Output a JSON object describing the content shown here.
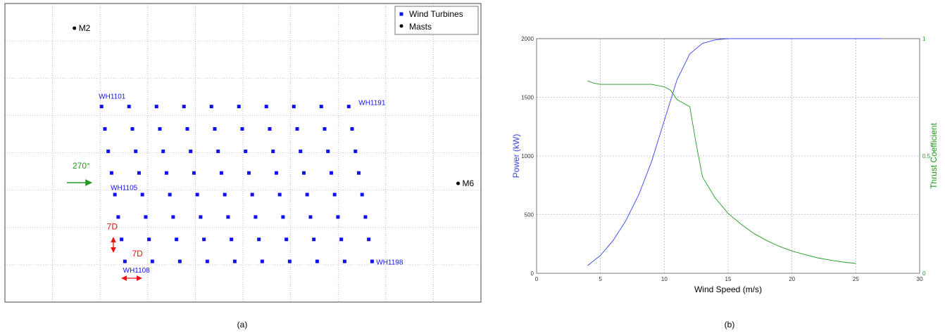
{
  "chart_data": [
    {
      "type": "scatter",
      "panel_label": "(a)",
      "xlim": [
        0,
        10
      ],
      "ylim": [
        0,
        8
      ],
      "grid": true,
      "legend_position": "top-right",
      "legend": [
        {
          "label": "Wind Turbines",
          "color": "#1010ee"
        },
        {
          "label": "Masts",
          "color": "#000000"
        }
      ],
      "series": [
        {
          "name": "Wind Turbines",
          "color": "#1010ee",
          "rows": [
            {
              "x_start": 2.03,
              "x_step": 0.577,
              "y": 5.24,
              "count": 10
            },
            {
              "x_start": 2.1,
              "x_step": 0.577,
              "y": 4.64,
              "count": 10
            },
            {
              "x_start": 2.17,
              "x_step": 0.577,
              "y": 4.04,
              "count": 10
            },
            {
              "x_start": 2.24,
              "x_step": 0.577,
              "y": 3.46,
              "count": 10
            },
            {
              "x_start": 2.31,
              "x_step": 0.577,
              "y": 2.88,
              "count": 10
            },
            {
              "x_start": 2.38,
              "x_step": 0.577,
              "y": 2.28,
              "count": 10
            },
            {
              "x_start": 2.45,
              "x_step": 0.577,
              "y": 1.68,
              "count": 10
            },
            {
              "x_start": 2.52,
              "x_step": 0.577,
              "y": 1.09,
              "count": 10
            }
          ]
        },
        {
          "name": "Masts",
          "color": "#000000",
          "points": [
            {
              "label": "M2",
              "x": 1.46,
              "y": 7.34
            },
            {
              "label": "M6",
              "x": 9.52,
              "y": 3.18
            }
          ]
        }
      ],
      "annotations": [
        {
          "text": "WH1101",
          "x": 1.97,
          "y": 5.45,
          "color": "#1010ee"
        },
        {
          "text": "WH1191",
          "x": 7.43,
          "y": 5.28,
          "color": "#1010ee"
        },
        {
          "text": "WH1105",
          "x": 2.22,
          "y": 3.0,
          "color": "#1010ee"
        },
        {
          "text": "WH1108",
          "x": 2.48,
          "y": 0.79,
          "color": "#1010ee"
        },
        {
          "text": "WH1198",
          "x": 7.8,
          "y": 1.01,
          "color": "#1010ee"
        },
        {
          "text": "270°",
          "x": 1.42,
          "y": 3.58,
          "color": "#229922"
        },
        {
          "text": "7D",
          "x": 2.14,
          "y": 1.95,
          "color": "#ee1111"
        },
        {
          "text": "7D",
          "x": 2.67,
          "y": 1.22,
          "color": "#ee1111"
        }
      ]
    },
    {
      "type": "line",
      "panel_label": "(b)",
      "xlabel": "Wind Speed (m/s)",
      "ylabel": "Power (kW)",
      "ylabel_right": "Thrust Coefficient",
      "xlim": [
        0,
        30
      ],
      "ylim": [
        0,
        2000
      ],
      "ylim_right": [
        0,
        1
      ],
      "x_ticks": [
        0,
        5,
        10,
        15,
        20,
        25,
        30
      ],
      "y_ticks": [
        0,
        500,
        1000,
        1500,
        2000
      ],
      "y_ticks_right": [
        0,
        0.5,
        1
      ],
      "grid": true,
      "series": [
        {
          "name": "Power",
          "axis": "left",
          "color": "#3344ee",
          "x": [
            4,
            5,
            6,
            7,
            8,
            9,
            10,
            11,
            12,
            13,
            14,
            15,
            16,
            17,
            18,
            19,
            20,
            21,
            22,
            23,
            24,
            25,
            26,
            27
          ],
          "values": [
            66,
            152,
            280,
            450,
            670,
            950,
            1300,
            1650,
            1870,
            1960,
            1990,
            2000,
            2000,
            2000,
            2000,
            2000,
            2000,
            2000,
            2000,
            2000,
            2000,
            2000,
            2000,
            2000
          ]
        },
        {
          "name": "Thrust Coefficient",
          "axis": "right",
          "color": "#229922",
          "x": [
            4,
            4.5,
            5,
            6,
            7,
            8,
            9,
            9.5,
            10,
            10.5,
            11,
            12,
            12.5,
            13,
            14,
            15,
            16,
            17,
            18,
            19,
            20,
            21,
            22,
            23,
            24,
            25
          ],
          "values": [
            0.82,
            0.81,
            0.805,
            0.805,
            0.805,
            0.805,
            0.805,
            0.8,
            0.795,
            0.78,
            0.74,
            0.71,
            0.55,
            0.41,
            0.32,
            0.255,
            0.21,
            0.17,
            0.14,
            0.115,
            0.095,
            0.08,
            0.066,
            0.056,
            0.048,
            0.042
          ]
        }
      ]
    }
  ]
}
